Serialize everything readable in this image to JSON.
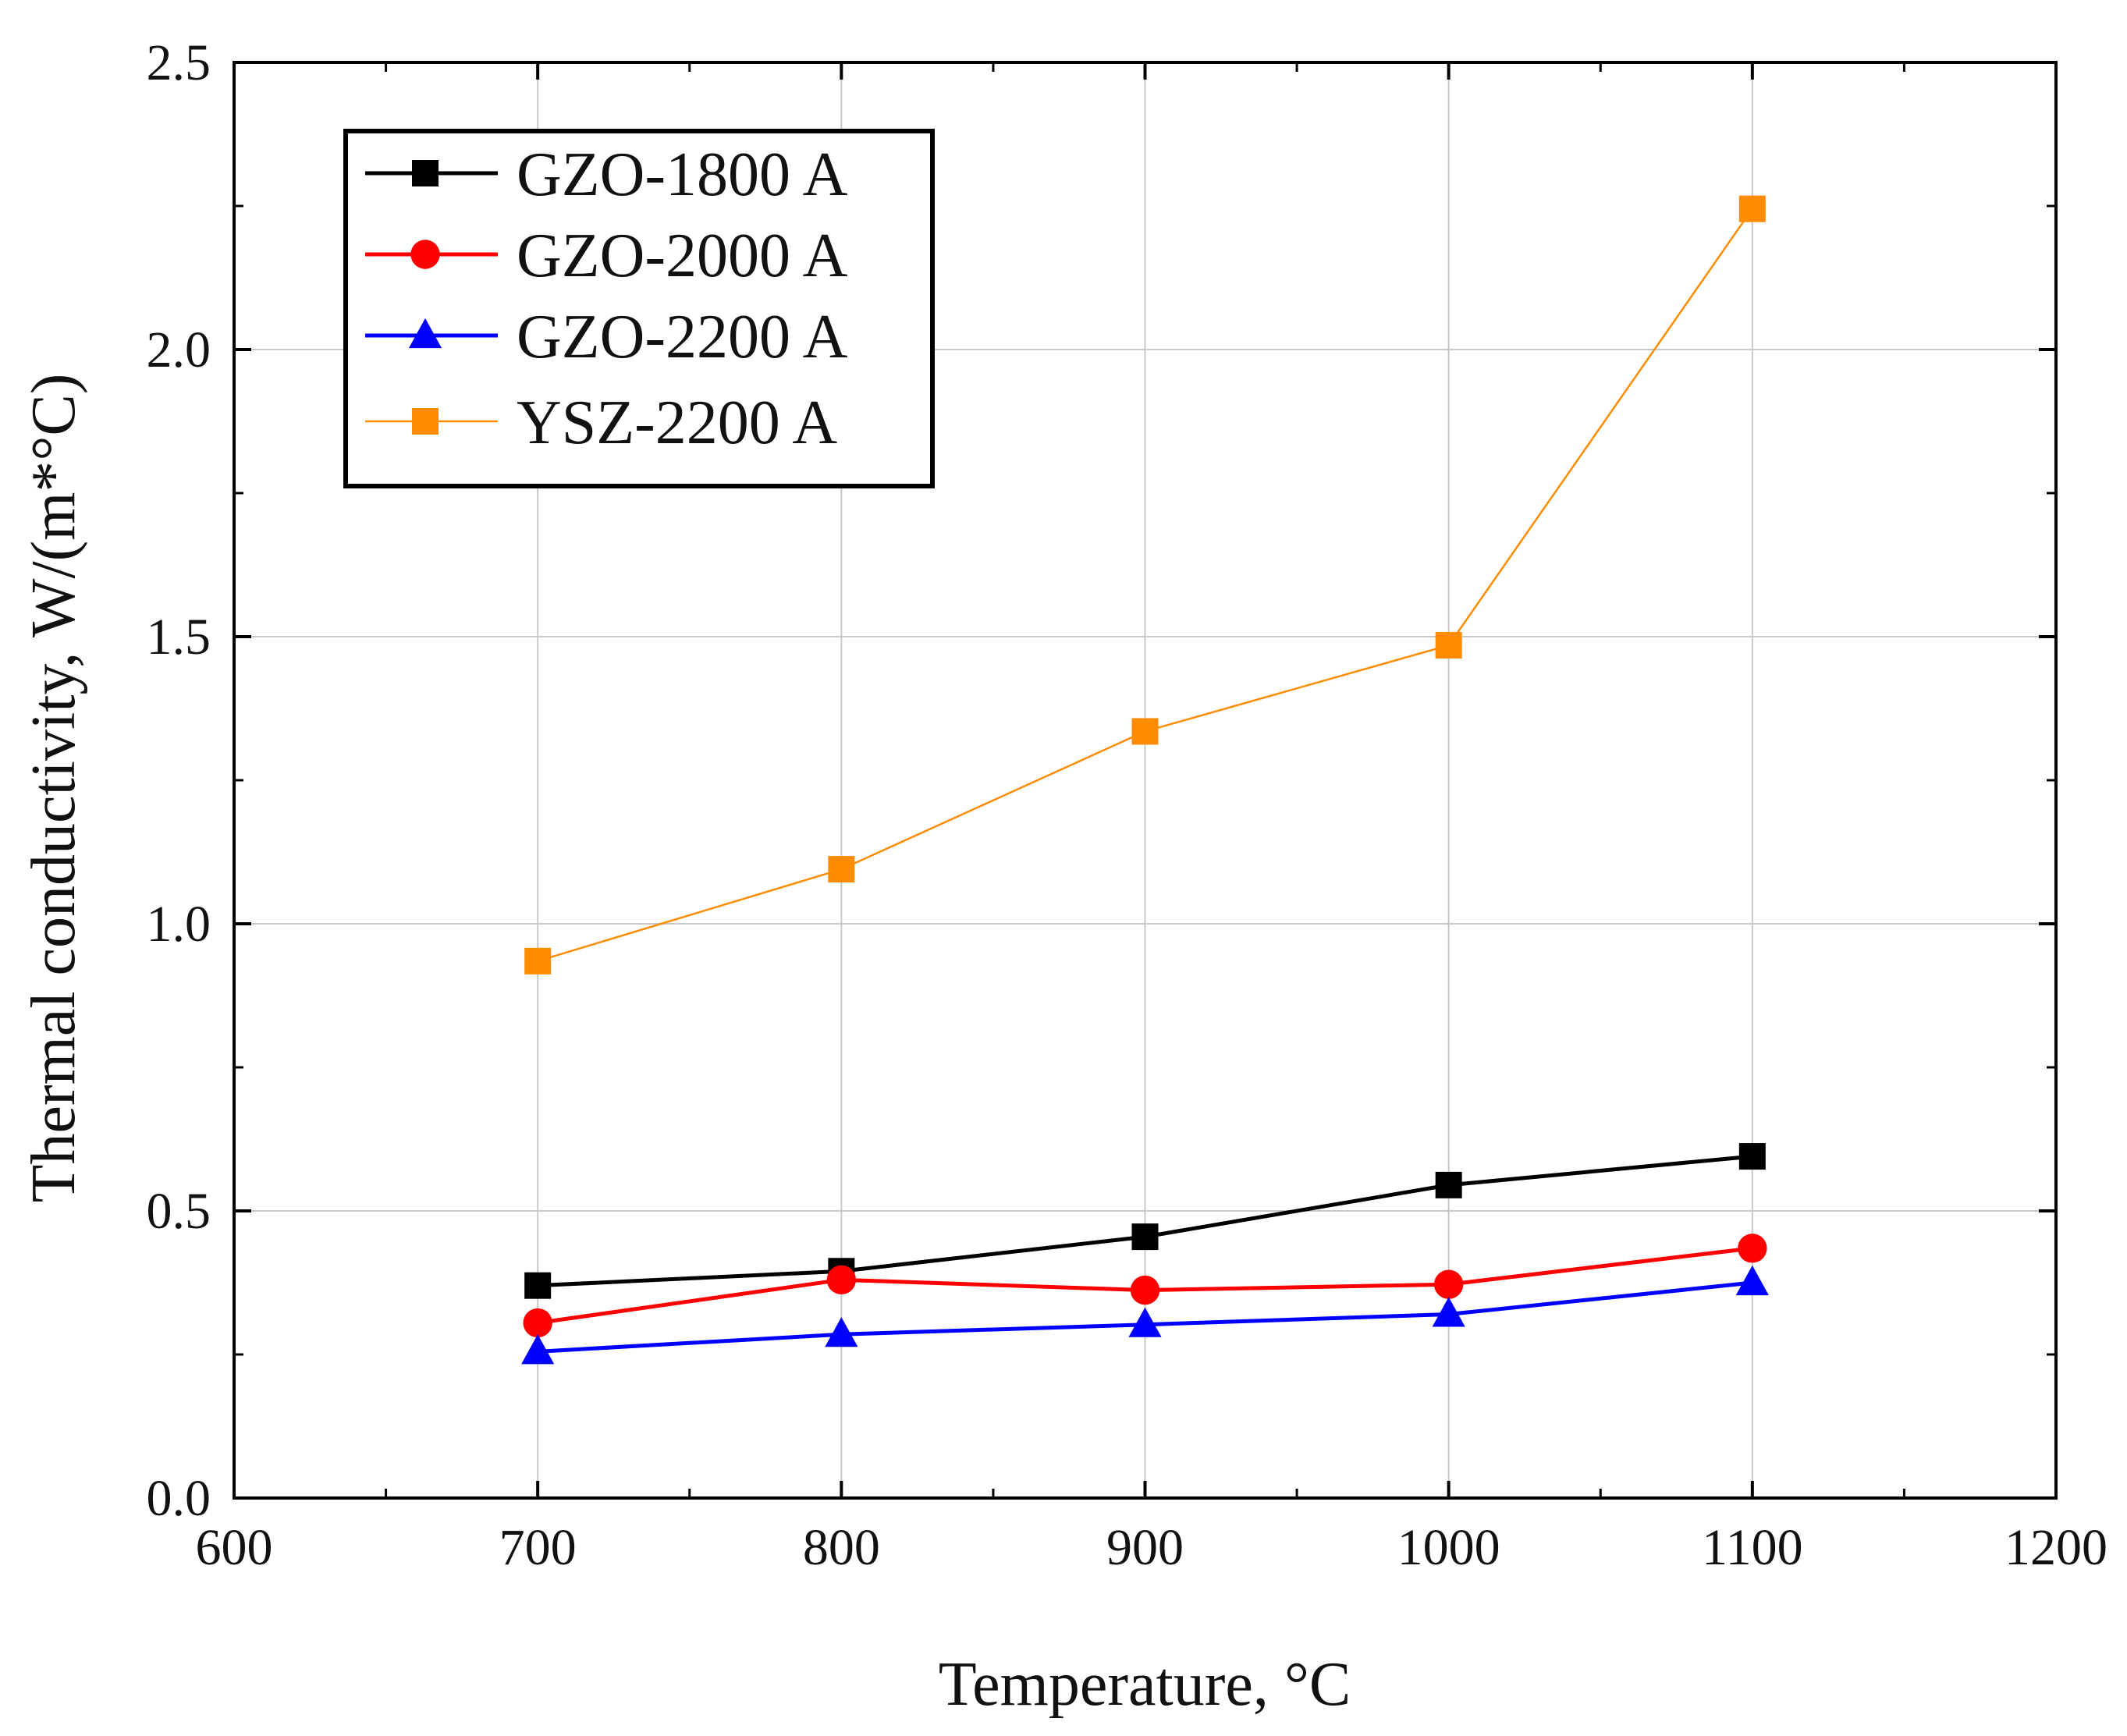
{
  "chart_data": {
    "type": "line",
    "title": "",
    "xlabel": "Temperature, °C",
    "ylabel": "Thermal conductivity, W/(m*°C)",
    "xlim": [
      600,
      1200
    ],
    "ylim": [
      0.0,
      2.5
    ],
    "grid": true,
    "legend_position": "top-left",
    "x_ticks": [
      600,
      700,
      800,
      900,
      1000,
      1100,
      1200
    ],
    "x_tick_labels": [
      "600",
      "700",
      "800",
      "900",
      "1000",
      "1100",
      "1200"
    ],
    "y_ticks": [
      0.0,
      0.5,
      1.0,
      1.5,
      2.0,
      2.5
    ],
    "y_tick_labels": [
      "0.0",
      "0.5",
      "1.0",
      "1.5",
      "2.0",
      "2.5"
    ],
    "x": [
      700,
      800,
      900,
      1000,
      1100
    ],
    "series": [
      {
        "name": "GZO-1800 A",
        "marker": "square",
        "color": "#000000",
        "values": [
          0.37,
          0.395,
          0.455,
          0.545,
          0.595
        ]
      },
      {
        "name": "GZO-2000 A",
        "marker": "circle",
        "color": "#ff0000",
        "values": [
          0.305,
          0.38,
          0.362,
          0.372,
          0.435
        ]
      },
      {
        "name": "GZO-2200 A",
        "marker": "triangle",
        "color": "#0000ff",
        "values": [
          0.255,
          0.285,
          0.302,
          0.32,
          0.375
        ]
      },
      {
        "name": "YSZ-2200 A",
        "marker": "square",
        "color": "#ff8c00",
        "values": [
          0.935,
          1.095,
          1.335,
          1.485,
          2.245
        ]
      }
    ]
  }
}
